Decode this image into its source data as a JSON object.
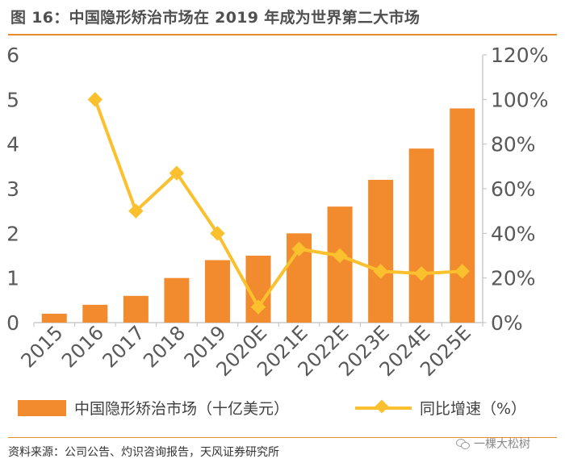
{
  "header": {
    "title": "图 16：中国隐形矫治市场在 2019 年成为世界第二大市场"
  },
  "footer": {
    "source": "资料来源：公司公告、灼识咨询报告，天风证券研究所",
    "watermark": "一棵大松树",
    "watermark_icon": "wechat-icon"
  },
  "colors": {
    "bar": "#f28a2e",
    "line": "#fbc02d",
    "axis": "#bfbfbf",
    "text": "#595959",
    "accent_rule": "#e88a2e"
  },
  "chart_data": {
    "type": "bar",
    "title": "中国隐形矫治市场在 2019 年成为世界第二大市场",
    "categories": [
      "2015",
      "2016",
      "2017",
      "2018",
      "2019",
      "2020E",
      "2021E",
      "2022E",
      "2023E",
      "2024E",
      "2025E"
    ],
    "series": [
      {
        "name": "中国隐形矫治市场（十亿美元）",
        "type": "bar",
        "axis": "left",
        "values": [
          0.2,
          0.4,
          0.6,
          1.0,
          1.4,
          1.5,
          2.0,
          2.6,
          3.2,
          3.9,
          4.8
        ]
      },
      {
        "name": "同比增速（%）",
        "type": "line",
        "axis": "right",
        "values": [
          null,
          100,
          50,
          67,
          40,
          7,
          33,
          30,
          23,
          22,
          23
        ]
      }
    ],
    "ylim_left": [
      0,
      6
    ],
    "yticks_left": [
      "0",
      "1",
      "2",
      "3",
      "4",
      "5",
      "6"
    ],
    "ylim_right": [
      0,
      120
    ],
    "yticks_right": [
      "0%",
      "20%",
      "40%",
      "60%",
      "80%",
      "100%",
      "120%"
    ],
    "legend_position": "bottom",
    "grid": false
  }
}
